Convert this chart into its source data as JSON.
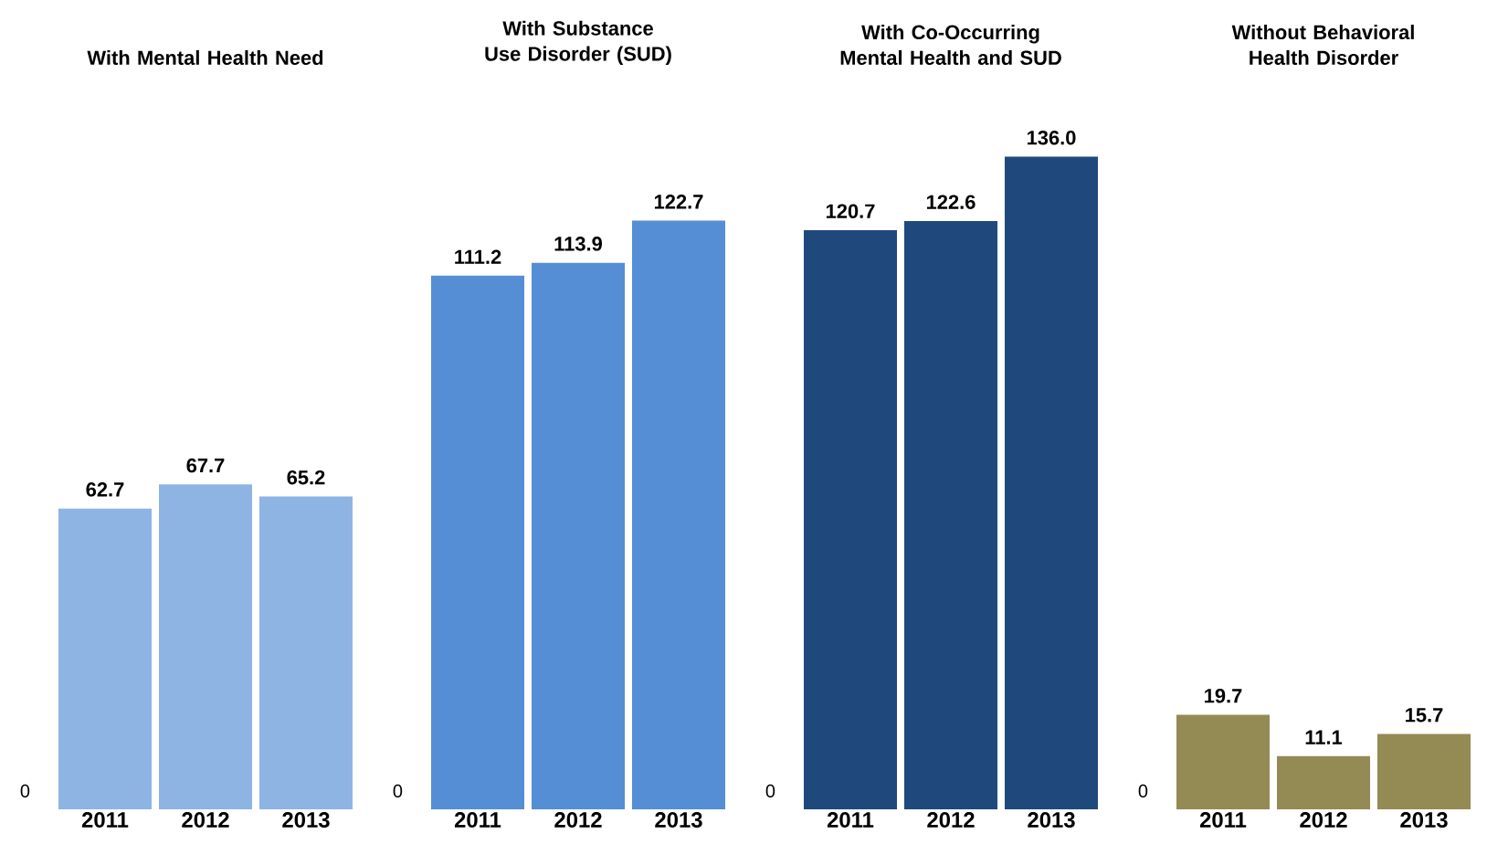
{
  "chart_data": [
    {
      "type": "bar",
      "title": "With Mental Health Need",
      "categories": [
        "2011",
        "2012",
        "2013"
      ],
      "values": [
        62.7,
        67.7,
        65.2
      ],
      "value_labels": [
        "62.7",
        "67.7",
        "65.2"
      ],
      "color": "#8eb4e3",
      "annotations": [
        "0"
      ]
    },
    {
      "type": "bar",
      "title": "With Substance Use Disorder (SUD)",
      "categories": [
        "2011",
        "2012",
        "2013"
      ],
      "values": [
        111.2,
        113.9,
        122.7
      ],
      "value_labels": [
        "111.2",
        "113.9",
        "122.7"
      ],
      "color": "#558ed5",
      "annotations": [
        "0"
      ]
    },
    {
      "type": "bar",
      "title": "With Co-Occurring Mental Health and SUD",
      "categories": [
        "2011",
        "2012",
        "2013"
      ],
      "values": [
        120.7,
        122.6,
        136.0
      ],
      "value_labels": [
        "120.7",
        "122.6",
        "136.0"
      ],
      "color": "#1f497d",
      "annotations": [
        "0"
      ]
    },
    {
      "type": "bar",
      "title": "Without Behavioral Health Disorder",
      "categories": [
        "2011",
        "2012",
        "2013"
      ],
      "values": [
        19.7,
        11.1,
        15.7
      ],
      "value_labels": [
        "19.7",
        "11.1",
        "15.7"
      ],
      "color": "#948a54",
      "annotations": [
        "0"
      ]
    }
  ]
}
